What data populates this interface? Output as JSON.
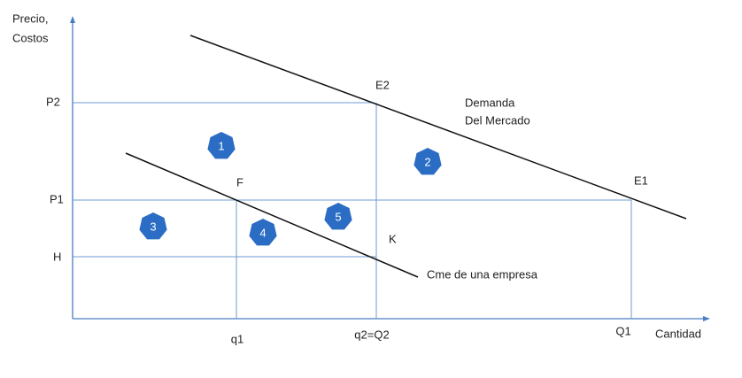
{
  "axes": {
    "y_label": [
      "Precio,",
      "Costos"
    ],
    "x_label": "Cantidad"
  },
  "y_ticks": [
    "P2",
    "P1",
    "H"
  ],
  "x_ticks": [
    "q1",
    "q2=Q2",
    "Q1"
  ],
  "points": [
    "E2",
    "E1",
    "F",
    "K"
  ],
  "curves": {
    "demand": [
      "Demanda",
      "Del Mercado"
    ],
    "cost": "Cme de una empresa"
  },
  "regions": [
    "1",
    "2",
    "3",
    "4",
    "5"
  ]
}
